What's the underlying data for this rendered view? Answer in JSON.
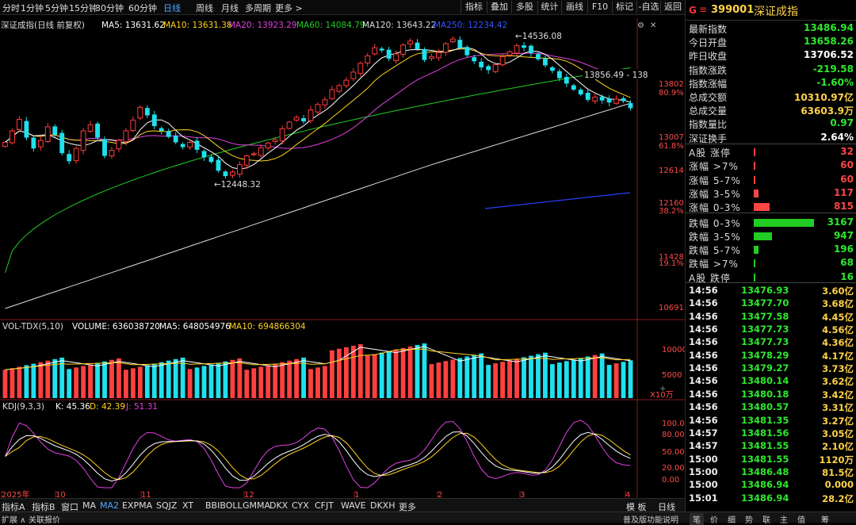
{
  "periods": [
    "分时",
    "1分钟",
    "5分钟",
    "15分钟",
    "30分钟",
    "60分钟",
    "日线",
    "周线",
    "月线",
    "多周期",
    "更多 >"
  ],
  "active_period": "日线",
  "toolbar": [
    "指标",
    "叠加",
    "多股",
    "统计",
    "画线",
    "F10",
    "标记",
    "-自选",
    "返回"
  ],
  "chart": {
    "title": "深证成指(日线 前复权)",
    "ma_labels": [
      {
        "text": "MA5: 13631.62",
        "color": "#ffffff"
      },
      {
        "text": "MA10: 13631.38",
        "color": "#ffd21e"
      },
      {
        "text": "MA20: 13923.29",
        "color": "#e040e0"
      },
      {
        "text": "MA60: 14084.79",
        "color": "#22cc22"
      },
      {
        "text": "MA120: 13643.22",
        "color": "#dddddd"
      },
      {
        "text": "MA250: 12234.42",
        "color": "#3355ff"
      }
    ],
    "price_axis": [
      "13802",
      "80.9%",
      "13007",
      "61.8%",
      "12614",
      "12160",
      "38.2%",
      "11428",
      "19.1%",
      "10691"
    ],
    "annotations": {
      "high": "14536.08",
      "low": "12448.32",
      "line": "13856.49 - 138"
    },
    "x_labels": [
      "2025年",
      "10",
      "11",
      "12",
      "1",
      "2",
      "3",
      "4"
    ],
    "vol_title": "VOL-TDX(5,10)",
    "vol_value": "VOLUME: 636038720",
    "vol_ma5": "MA5: 648054976",
    "vol_ma10": "MA10: 694866304",
    "vol_axis": [
      "10000",
      "5000",
      "X10万"
    ],
    "kdj_title": "KDJ(9,3,3)",
    "kdj_k": "K: 45.36",
    "kdj_d": "D: 42.39",
    "kdj_j": "J: 51.31",
    "kdj_axis": [
      "100.00",
      "80.00",
      "50.00",
      "20.00",
      "0.00"
    ]
  },
  "chart_data": {
    "type": "candlestick",
    "title": "深证成指(日线 前复权)",
    "closes": [
      12980,
      13150,
      13320,
      13050,
      12890,
      13010,
      13210,
      13090,
      12820,
      12700,
      12890,
      13150,
      13240,
      13050,
      12780,
      12860,
      13010,
      13150,
      13310,
      13500,
      13380,
      13220,
      13150,
      13060,
      12980,
      12910,
      12980,
      12870,
      12760,
      12690,
      12560,
      12480,
      12540,
      12650,
      12780,
      12810,
      12900,
      12970,
      13020,
      13180,
      13280,
      13350,
      13290,
      13460,
      13540,
      13610,
      13760,
      13820,
      13900,
      14020,
      14150,
      14260,
      14380,
      14340,
      14220,
      14290,
      14420,
      14480,
      14360,
      14200,
      14250,
      14310,
      14440,
      14510,
      14380,
      14270,
      14180,
      14090,
      14050,
      14130,
      14250,
      14320,
      14410,
      14380,
      14300,
      14210,
      14120,
      14040,
      13930,
      13850,
      13760,
      13690,
      13610,
      13650,
      13600,
      13570,
      13620,
      13590,
      13486.94
    ],
    "highlights": {
      "high": 14536.08,
      "low": 12448.32
    },
    "y_ticks": [
      13802,
      13007,
      12614,
      12160,
      11428,
      10691
    ],
    "volume": {
      "last": 636038720,
      "ma5": 648054976,
      "ma10": 694866304
    },
    "kdj": {
      "K": 45.36,
      "D": 42.39,
      "J": 51.31
    }
  },
  "right": {
    "code": "399001",
    "name": "深证成指",
    "menu": "≡",
    "stats": [
      {
        "k": "最新指数",
        "v": "13486.94",
        "c": "#2ee82e"
      },
      {
        "k": "今日开盘",
        "v": "13658.26",
        "c": "#2ee82e"
      },
      {
        "k": "昨日收盘",
        "v": "13706.52",
        "c": "#ffffff"
      },
      {
        "k": "指数涨跌",
        "v": "-219.58",
        "c": "#2ee82e"
      },
      {
        "k": "指数涨幅",
        "v": "-1.60%",
        "c": "#2ee82e"
      },
      {
        "k": "总成交额",
        "v": "10310.97亿",
        "c": "#ffd24a"
      },
      {
        "k": "总成交量",
        "v": "63603.9万",
        "c": "#ffd24a"
      },
      {
        "k": "指数量比",
        "v": "0.97",
        "c": "#2ee82e"
      },
      {
        "k": "深证换手",
        "v": "2.64%",
        "c": "#ffffff"
      }
    ],
    "breadth": [
      {
        "k": "A股 涨停",
        "v": "32",
        "w": 2,
        "c": "#ff4444"
      },
      {
        "k": "涨幅 >7%",
        "v": "60",
        "w": 2,
        "c": "#ff4444"
      },
      {
        "k": "涨幅 5-7%",
        "v": "60",
        "w": 2,
        "c": "#ff4444"
      },
      {
        "k": "涨幅 3-5%",
        "v": "117",
        "w": 6,
        "c": "#ff4444"
      },
      {
        "k": "涨幅 0-3%",
        "v": "815",
        "w": 20,
        "c": "#ff4444"
      },
      {
        "k": "跌幅 0-3%",
        "v": "3167",
        "w": 76,
        "c": "#22cc22"
      },
      {
        "k": "跌幅 3-5%",
        "v": "947",
        "w": 23,
        "c": "#22cc22"
      },
      {
        "k": "跌幅 5-7%",
        "v": "196",
        "w": 6,
        "c": "#22cc22"
      },
      {
        "k": "跌幅 >7%",
        "v": "68",
        "w": 2,
        "c": "#22cc22"
      },
      {
        "k": "A股 跌停",
        "v": "16",
        "w": 2,
        "c": "#22cc22"
      }
    ],
    "ticks": [
      {
        "t": "14:56",
        "p": "13476.93",
        "v": "3.60亿"
      },
      {
        "t": "14:56",
        "p": "13477.70",
        "v": "3.68亿"
      },
      {
        "t": "14:56",
        "p": "13477.58",
        "v": "4.45亿"
      },
      {
        "t": "14:56",
        "p": "13477.73",
        "v": "4.56亿"
      },
      {
        "t": "14:56",
        "p": "13477.73",
        "v": "4.36亿"
      },
      {
        "t": "14:56",
        "p": "13478.29",
        "v": "4.17亿"
      },
      {
        "t": "14:56",
        "p": "13479.27",
        "v": "3.73亿"
      },
      {
        "t": "14:56",
        "p": "13480.14",
        "v": "3.62亿"
      },
      {
        "t": "14:56",
        "p": "13480.18",
        "v": "3.42亿"
      },
      {
        "t": "14:56",
        "p": "13480.57",
        "v": "3.31亿"
      },
      {
        "t": "14:56",
        "p": "13481.35",
        "v": "3.27亿"
      },
      {
        "t": "14:57",
        "p": "13481.56",
        "v": "3.05亿"
      },
      {
        "t": "14:57",
        "p": "13481.55",
        "v": "2.10亿"
      },
      {
        "t": "15:00",
        "p": "13481.55",
        "v": "1120万"
      },
      {
        "t": "15:00",
        "p": "13486.48",
        "v": "81.5亿"
      },
      {
        "t": "15:00",
        "p": "13486.94",
        "v": "0.000"
      },
      {
        "t": "15:01",
        "p": "13486.94",
        "v": "28.2亿"
      }
    ]
  },
  "bottom": {
    "indicators": [
      "指标A",
      "指标B",
      "窗口",
      "MA",
      "MA2",
      "EXPMA",
      "SQJZ",
      "XT",
      "BBIBOLL",
      "GMMA",
      "DKX",
      "CYX",
      "CFJT",
      "WAVE",
      "DKXH",
      "更多"
    ],
    "active": "MA2",
    "right_btns": [
      "模 板",
      "日线"
    ],
    "status_left": [
      "扩展 ∧",
      "关联报价"
    ],
    "status_right": [
      "普及版功能说明",
      "笔",
      "价",
      "细",
      "势",
      "联",
      "主",
      "值",
      "筹"
    ]
  }
}
